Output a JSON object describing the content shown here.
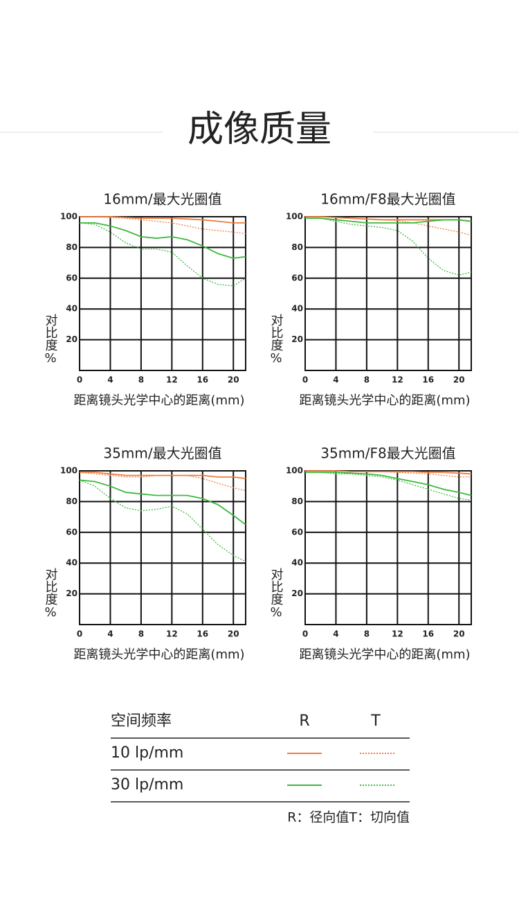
{
  "title": "成像质量",
  "chart_data": [
    {
      "type": "line",
      "title": "16mm/最大光圈值",
      "ylabel": "对比度%",
      "xlabel": "距离镜头光学中心的距离(mm)",
      "x": [
        0,
        2,
        4,
        6,
        8,
        10,
        12,
        14,
        16,
        18,
        20,
        21.6
      ],
      "xlim": [
        0,
        21.6
      ],
      "ylim": [
        0,
        100
      ],
      "xticks": [
        0,
        4,
        8,
        12,
        16,
        20
      ],
      "yticks": [
        20,
        40,
        60,
        80,
        100
      ],
      "grid": true,
      "series": [
        {
          "color": "#f07a3a",
          "style": "solid",
          "values": [
            100,
            100,
            100,
            99.5,
            99,
            99,
            99,
            98.5,
            98,
            97,
            96,
            96
          ]
        },
        {
          "color": "#f07a3a",
          "style": "dotted",
          "values": [
            100,
            100,
            99.5,
            99,
            98,
            97,
            96,
            94,
            92,
            91,
            90,
            89
          ]
        },
        {
          "color": "#3cb83c",
          "style": "solid",
          "values": [
            96,
            96,
            94,
            91,
            87,
            86,
            87,
            85,
            81,
            76,
            73,
            74
          ]
        },
        {
          "color": "#3cb83c",
          "style": "dotted",
          "values": [
            96,
            95,
            90,
            83,
            79,
            79,
            77,
            68,
            60,
            56,
            55,
            60
          ]
        }
      ]
    },
    {
      "type": "line",
      "title": "16mm/F8最大光圈值",
      "ylabel": "对比度%",
      "xlabel": "距离镜头光学中心的距离(mm)",
      "x": [
        0,
        2,
        4,
        6,
        8,
        10,
        12,
        14,
        16,
        18,
        20,
        21.6
      ],
      "xlim": [
        0,
        21.6
      ],
      "ylim": [
        0,
        100
      ],
      "xticks": [
        0,
        4,
        8,
        12,
        16,
        20
      ],
      "yticks": [
        20,
        40,
        60,
        80,
        100
      ],
      "grid": true,
      "series": [
        {
          "color": "#f07a3a",
          "style": "solid",
          "values": [
            100,
            100,
            99.5,
            99,
            98.5,
            98,
            98,
            98,
            98,
            98,
            98,
            97
          ]
        },
        {
          "color": "#f07a3a",
          "style": "dotted",
          "values": [
            100,
            100,
            99.5,
            99,
            98.5,
            98,
            97.5,
            96,
            94,
            92,
            90,
            88
          ]
        },
        {
          "color": "#3cb83c",
          "style": "solid",
          "values": [
            99,
            99,
            98,
            97,
            96,
            96,
            96,
            96,
            97,
            98,
            98,
            97
          ]
        },
        {
          "color": "#3cb83c",
          "style": "dotted",
          "values": [
            99,
            99,
            97,
            95,
            94,
            93,
            91,
            84,
            73,
            65,
            62,
            64
          ]
        }
      ]
    },
    {
      "type": "line",
      "title": "35mm/最大光圈值",
      "ylabel": "对比度%",
      "xlabel": "距离镜头光学中心的距离(mm)",
      "x": [
        0,
        2,
        4,
        6,
        8,
        10,
        12,
        14,
        16,
        18,
        20,
        21.6
      ],
      "xlim": [
        0,
        21.6
      ],
      "ylim": [
        0,
        100
      ],
      "xticks": [
        0,
        4,
        8,
        12,
        16,
        20
      ],
      "yticks": [
        20,
        40,
        60,
        80,
        100
      ],
      "grid": true,
      "series": [
        {
          "color": "#f07a3a",
          "style": "solid",
          "values": [
            99,
            99,
            98,
            97,
            97,
            97,
            97,
            97,
            97,
            96,
            96,
            95
          ]
        },
        {
          "color": "#f07a3a",
          "style": "dotted",
          "values": [
            99,
            98,
            97,
            96,
            96,
            97,
            97,
            97,
            95,
            92,
            89,
            87
          ]
        },
        {
          "color": "#3cb83c",
          "style": "solid",
          "values": [
            94,
            93,
            90,
            86,
            85,
            84,
            84,
            84,
            82,
            78,
            71,
            65
          ]
        },
        {
          "color": "#3cb83c",
          "style": "dotted",
          "values": [
            94,
            90,
            82,
            76,
            74,
            75,
            77,
            72,
            62,
            52,
            45,
            41
          ]
        }
      ]
    },
    {
      "type": "line",
      "title": "35mm/F8最大光圈值",
      "ylabel": "对比度%",
      "xlabel": "距离镜头光学中心的距离(mm)",
      "x": [
        0,
        2,
        4,
        6,
        8,
        10,
        12,
        14,
        16,
        18,
        20,
        21.6
      ],
      "xlim": [
        0,
        21.6
      ],
      "ylim": [
        0,
        100
      ],
      "xticks": [
        0,
        4,
        8,
        12,
        16,
        20
      ],
      "yticks": [
        20,
        40,
        60,
        80,
        100
      ],
      "grid": true,
      "series": [
        {
          "color": "#f07a3a",
          "style": "solid",
          "values": [
            100,
            100,
            100,
            99.5,
            99.5,
            99.5,
            99.5,
            99.5,
            99,
            99,
            98.5,
            98
          ]
        },
        {
          "color": "#f07a3a",
          "style": "dotted",
          "values": [
            100,
            100,
            100,
            99.5,
            99.5,
            99.5,
            99,
            98.5,
            98,
            97,
            96,
            96
          ]
        },
        {
          "color": "#3cb83c",
          "style": "solid",
          "values": [
            99,
            99,
            99,
            98.5,
            98,
            97,
            95,
            93,
            91,
            88,
            86,
            84
          ]
        },
        {
          "color": "#3cb83c",
          "style": "dotted",
          "values": [
            99,
            99,
            98,
            98,
            97,
            96,
            94,
            91,
            88,
            85,
            82,
            81
          ]
        }
      ]
    }
  ],
  "legend": {
    "header": [
      "空间频率",
      "R",
      "T"
    ],
    "rows": [
      "10 lp/mm",
      "30 lp/mm"
    ],
    "note": "R：径向值T：切向值"
  }
}
